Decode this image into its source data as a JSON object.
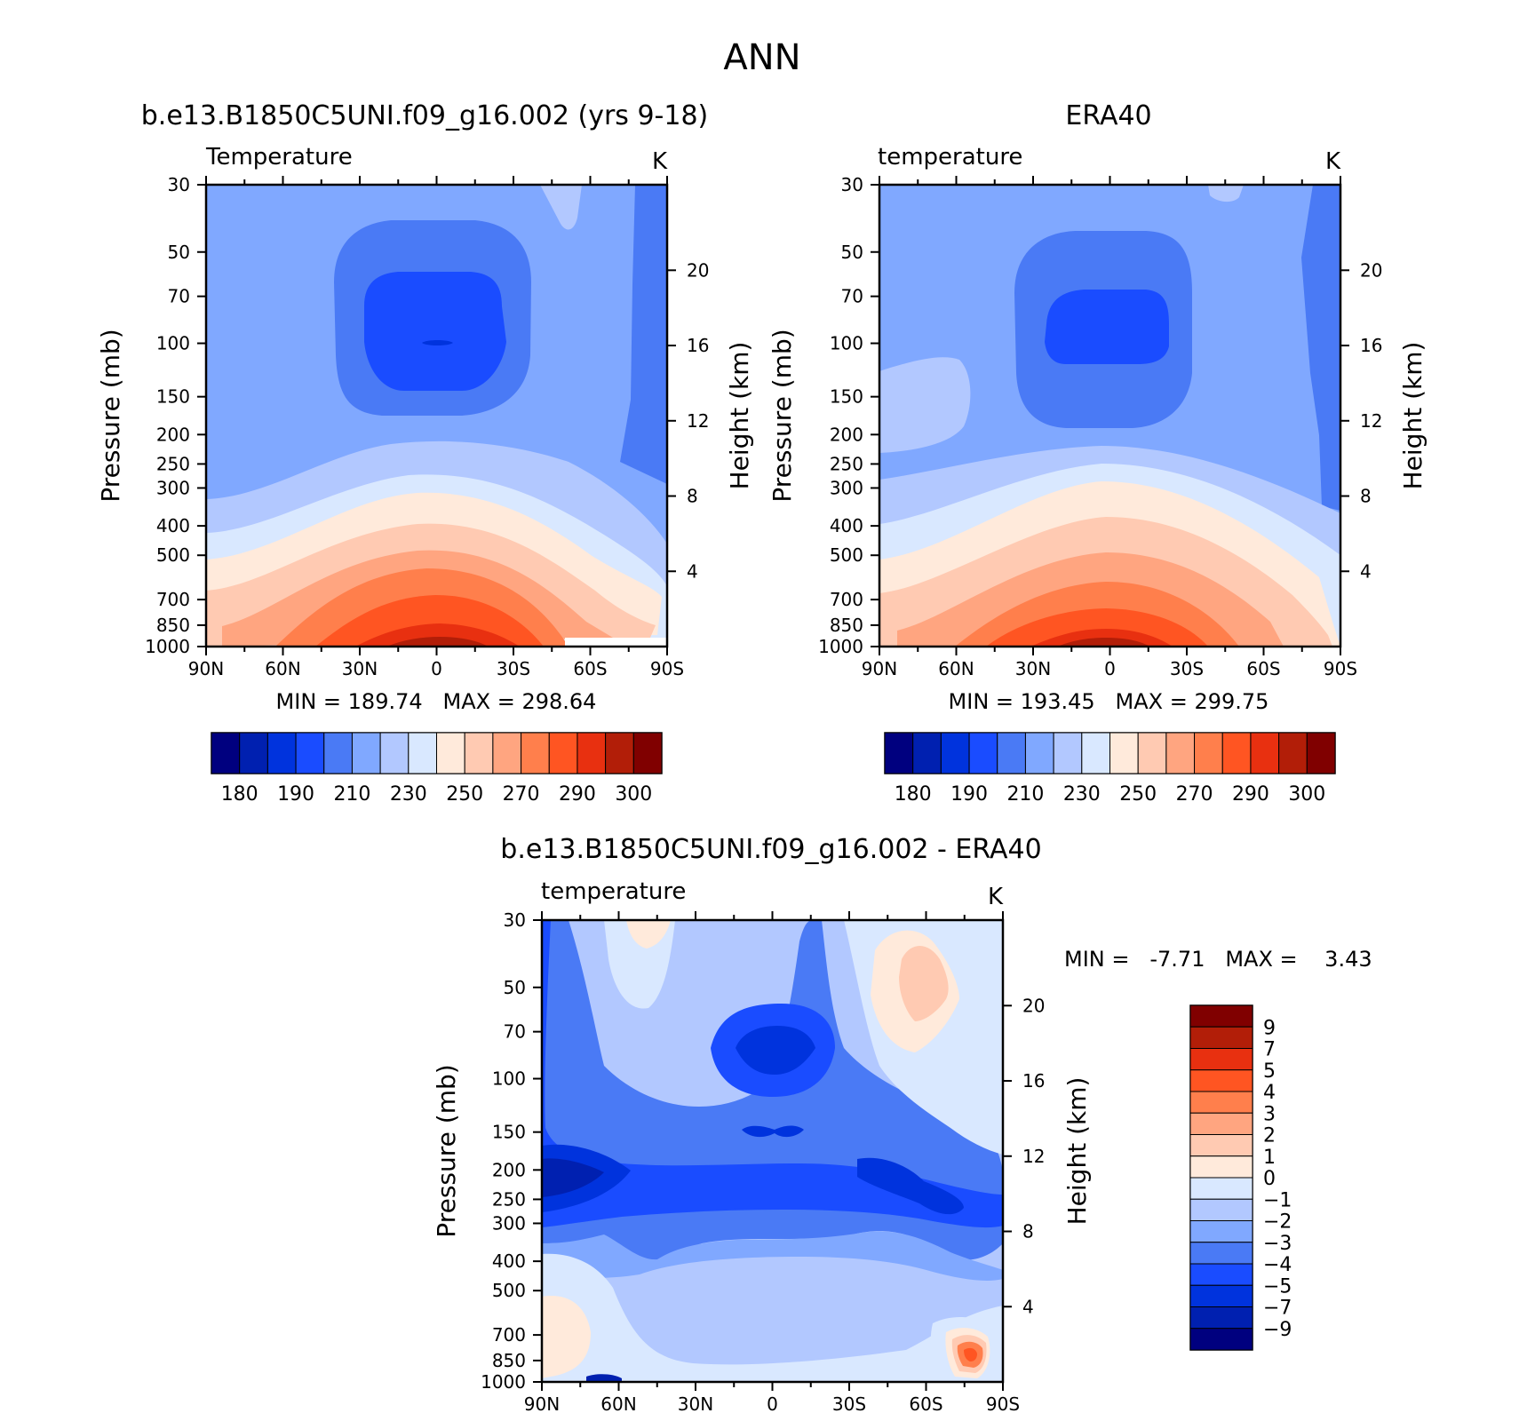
{
  "page_title": "ANN",
  "chart_data": [
    {
      "type": "heatmap",
      "title": "b.e13.B1850C5UNI.f09_g16.002 (yrs 9-18)",
      "left_label": "Temperature",
      "units": "K",
      "ylabel": "Pressure (mb)",
      "ylabel_right": "Height (km)",
      "x_ticks": [
        "90N",
        "60N",
        "30N",
        "0",
        "30S",
        "60S",
        "90S"
      ],
      "y_ticks": [
        "30",
        "50",
        "70",
        "100",
        "150",
        "200",
        "250",
        "300",
        "400",
        "500",
        "700",
        "850",
        "1000"
      ],
      "height_ticks": [
        "20",
        "16",
        "12",
        "8",
        "4"
      ],
      "stats": "MIN = 189.74   MAX = 298.64",
      "xlim": [
        90,
        -90
      ],
      "ylim": [
        1000,
        30
      ],
      "y_scale": "log",
      "colorbar_labels": [
        "180",
        "190",
        "210",
        "230",
        "250",
        "270",
        "290",
        "300"
      ]
    },
    {
      "type": "heatmap",
      "title": "ERA40",
      "left_label": "temperature",
      "units": "K",
      "ylabel": "Pressure (mb)",
      "ylabel_right": "Height (km)",
      "x_ticks": [
        "90N",
        "60N",
        "30N",
        "0",
        "30S",
        "60S",
        "90S"
      ],
      "y_ticks": [
        "30",
        "50",
        "70",
        "100",
        "150",
        "200",
        "250",
        "300",
        "400",
        "500",
        "700",
        "850",
        "1000"
      ],
      "height_ticks": [
        "20",
        "16",
        "12",
        "8",
        "4"
      ],
      "stats": "MIN = 193.45   MAX = 299.75",
      "xlim": [
        90,
        -90
      ],
      "ylim": [
        1000,
        30
      ],
      "y_scale": "log",
      "colorbar_labels": [
        "180",
        "190",
        "210",
        "230",
        "250",
        "270",
        "290",
        "300"
      ]
    },
    {
      "type": "heatmap",
      "title": "b.e13.B1850C5UNI.f09_g16.002 - ERA40",
      "left_label": "temperature",
      "units": "K",
      "ylabel": "Pressure (mb)",
      "ylabel_right": "Height (km)",
      "x_ticks": [
        "90N",
        "60N",
        "30N",
        "0",
        "30S",
        "60S",
        "90S"
      ],
      "y_ticks": [
        "30",
        "50",
        "70",
        "100",
        "150",
        "200",
        "250",
        "300",
        "400",
        "500",
        "700",
        "850",
        "1000"
      ],
      "height_ticks": [
        "20",
        "16",
        "12",
        "8",
        "4"
      ],
      "stats": "MIN =   -7.71   MAX =    3.43",
      "xlim": [
        90,
        -90
      ],
      "ylim": [
        1000,
        30
      ],
      "y_scale": "log",
      "colorbar_labels": [
        "9",
        "7",
        "5",
        "4",
        "3",
        "2",
        "1",
        "0",
        "-1",
        "-2",
        "-3",
        "-4",
        "-5",
        "-7",
        "-9"
      ]
    }
  ],
  "colors": {
    "abs_scale": [
      "#00007f",
      "#0020b0",
      "#0033dd",
      "#1a4cff",
      "#4a7af5",
      "#80a8ff",
      "#b2c8ff",
      "#d9e8ff",
      "#ffeadb",
      "#ffcab2",
      "#ffa580",
      "#ff7f4c",
      "#ff5522",
      "#e83010",
      "#b21e08",
      "#800000"
    ],
    "diff_scale": [
      "#800000",
      "#b21e08",
      "#e83010",
      "#ff5522",
      "#ff7f4c",
      "#ffa580",
      "#ffcab2",
      "#ffeadb",
      "#d9e8ff",
      "#b2c8ff",
      "#80a8ff",
      "#4a7af5",
      "#1a4cff",
      "#0033dd",
      "#0020b0",
      "#00007f"
    ]
  }
}
